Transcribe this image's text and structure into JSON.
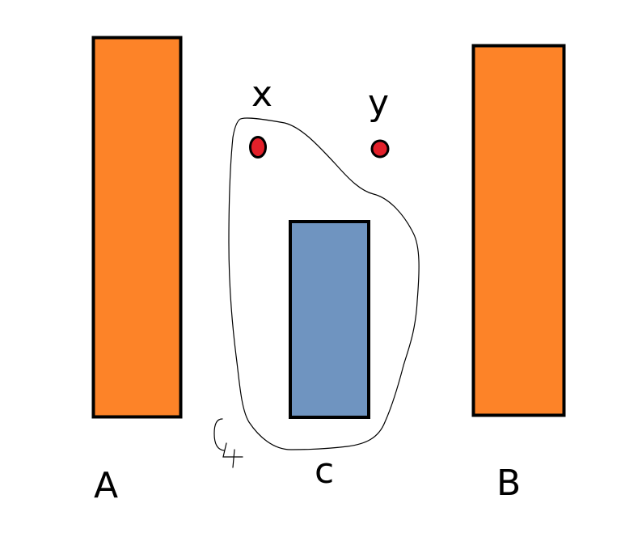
{
  "labels": {
    "a": "A",
    "b": "B",
    "c": "c",
    "x": "x",
    "y": "y",
    "curve": "C₁"
  },
  "colors": {
    "background": "#ffffff",
    "orange_bar": "#fd8328",
    "blue_bar": "#6f94c0",
    "point": "#e3202a",
    "stroke": "#000000"
  }
}
